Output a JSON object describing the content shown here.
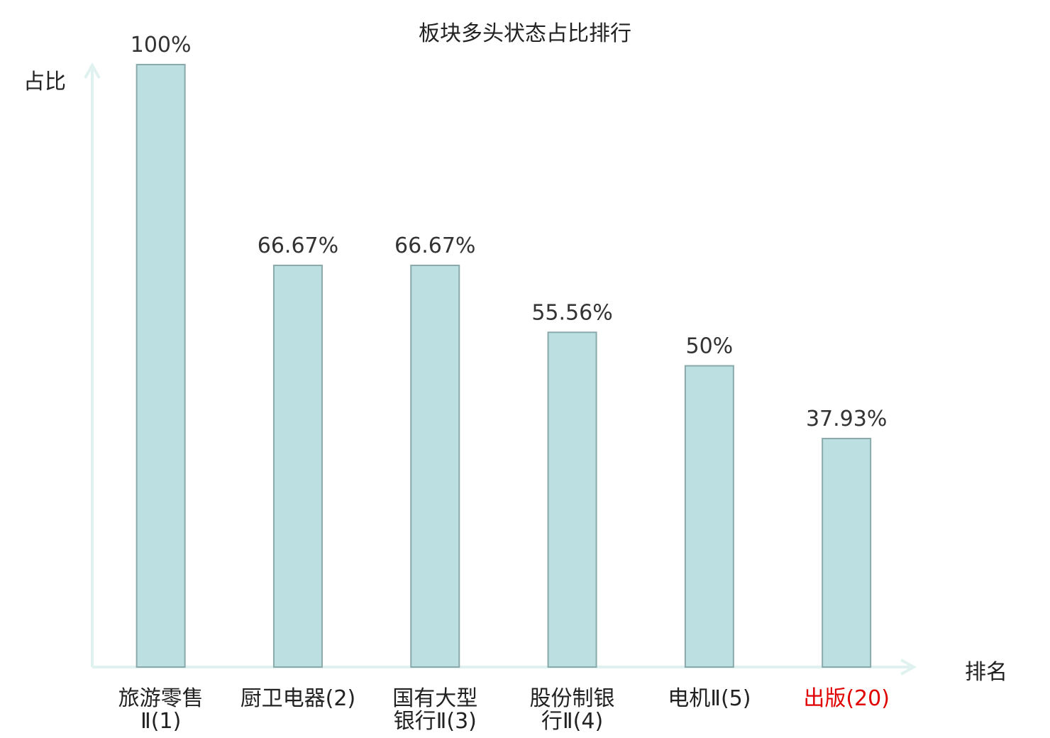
{
  "chart_data": {
    "type": "bar",
    "title": "板块多头状态占比排行",
    "ylabel": "占比",
    "xlabel": "排名",
    "categories": [
      [
        "旅游零售",
        "Ⅱ(1)"
      ],
      [
        "厨卫电器(2)"
      ],
      [
        "国有大型",
        "银行Ⅱ(3)"
      ],
      [
        "股份制银",
        "行Ⅱ(4)"
      ],
      [
        "电机Ⅱ(5)"
      ],
      [
        "出版(20)"
      ]
    ],
    "values": [
      100,
      66.67,
      66.67,
      55.56,
      50,
      37.93
    ],
    "value_labels": [
      "100%",
      "66.67%",
      "66.67%",
      "55.56%",
      "50%",
      "37.93%"
    ],
    "highlight_index": 5,
    "ylim": [
      0,
      100
    ],
    "grid": false,
    "colors": {
      "bar_fill": "#bce0e2",
      "bar_stroke": "#8aa9ab",
      "axis": "#dff2ef",
      "label_text": "#333333",
      "category_text": "#222222",
      "highlight_text": "#e00000"
    }
  }
}
